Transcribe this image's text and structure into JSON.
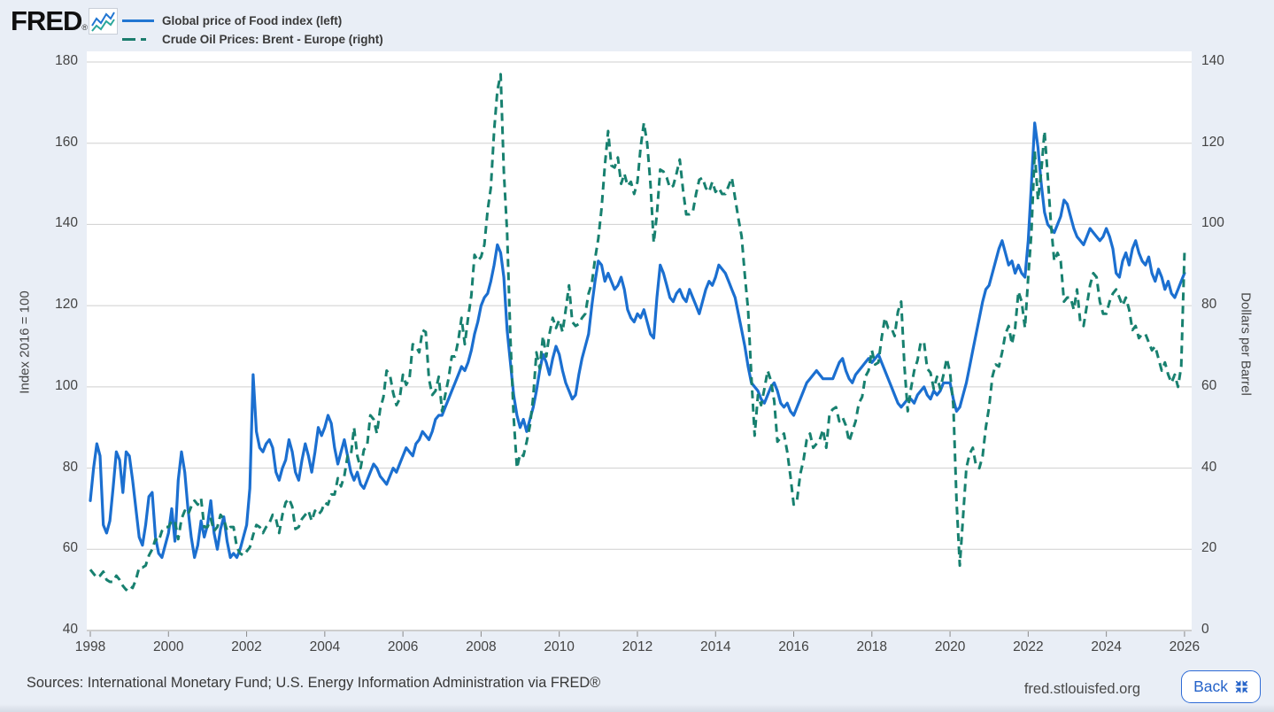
{
  "header": {
    "logo_text": "FRED",
    "registered_mark": "®",
    "sparkline_icon": "fred-sparkline-icon"
  },
  "legend": [
    {
      "label": "Global price of Food index (left)",
      "color": "#2176d2",
      "style": "solid"
    },
    {
      "label": "Crude Oil Prices: Brent - Europe (right)",
      "color": "#1b7c6d",
      "style": "dashed"
    }
  ],
  "footer": {
    "sources": "Sources: International Monetary Fund; U.S. Energy Information Administration via FRED®",
    "site": "fred.stlouisfed.org",
    "back_label": "Back"
  },
  "chart_data": {
    "type": "line",
    "title": "",
    "x_start_year": 1998,
    "x_interval": "monthly",
    "x_ticks": [
      1998,
      2000,
      2002,
      2004,
      2006,
      2008,
      2010,
      2012,
      2014,
      2016,
      2018,
      2020,
      2022,
      2024,
      2026
    ],
    "grid": true,
    "legend_position": "top-left",
    "left_axis": {
      "title": "Index 2016 = 100",
      "min": 40,
      "max": 180,
      "ticks": [
        180,
        160,
        140,
        120,
        100,
        80,
        60,
        40
      ]
    },
    "right_axis": {
      "title": "Dollars per Barrel",
      "min": 0,
      "max": 140,
      "ticks": [
        140,
        120,
        100,
        80,
        60,
        40,
        20,
        0
      ]
    },
    "series": [
      {
        "name": "Global price of Food index (left)",
        "axis": "left",
        "color": "#1b6fd0",
        "style": "solid",
        "values": [
          72,
          80,
          86,
          83,
          66,
          64,
          67,
          75,
          84,
          82,
          74,
          84,
          83,
          77,
          70,
          63,
          61,
          66,
          73,
          74,
          63,
          59,
          58,
          61,
          64,
          70,
          62,
          77,
          84,
          79,
          70,
          63,
          58,
          61,
          67,
          63,
          66,
          72,
          64,
          60,
          65,
          68,
          62,
          58,
          59,
          58,
          60,
          63,
          66,
          75,
          103,
          89,
          85,
          84,
          86,
          87,
          85,
          79,
          77,
          80,
          82,
          87,
          84,
          79,
          77,
          82,
          86,
          83,
          79,
          84,
          90,
          88,
          90,
          93,
          91,
          85,
          81,
          84,
          87,
          83,
          79,
          77,
          79,
          76,
          75,
          77,
          79,
          81,
          80,
          78,
          77,
          76,
          78,
          80,
          79,
          81,
          83,
          85,
          84,
          83,
          86,
          87,
          89,
          88,
          87,
          89,
          92,
          93,
          93,
          95,
          97,
          99,
          101,
          103,
          105,
          104,
          106,
          109,
          113,
          116,
          120,
          122,
          123,
          126,
          130,
          135,
          133,
          127,
          114,
          106,
          98,
          93,
          90,
          92,
          89,
          92,
          95,
          99,
          104,
          108,
          106,
          103,
          107,
          110,
          108,
          104,
          101,
          99,
          97,
          98,
          103,
          107,
          110,
          113,
          120,
          126,
          131,
          130,
          126,
          128,
          126,
          124,
          125,
          127,
          124,
          119,
          117,
          116,
          118,
          117,
          119,
          116,
          113,
          112,
          122,
          130,
          128,
          125,
          122,
          121,
          123,
          124,
          122,
          121,
          124,
          122,
          120,
          118,
          121,
          124,
          126,
          125,
          127,
          130,
          129,
          128,
          126,
          124,
          122,
          118,
          114,
          110,
          105,
          101,
          100,
          99,
          97,
          96,
          98,
          100,
          101,
          99,
          96,
          95,
          96,
          94,
          93,
          95,
          97,
          99,
          101,
          102,
          103,
          104,
          103,
          102,
          102,
          102,
          102,
          104,
          106,
          107,
          104,
          102,
          101,
          103,
          104,
          105,
          106,
          107,
          106,
          107,
          108,
          106,
          104,
          102,
          100,
          98,
          96,
          95,
          96,
          97,
          97,
          96,
          98,
          99,
          100,
          98,
          97,
          99,
          98,
          99,
          101,
          101,
          101,
          97,
          94,
          95,
          98,
          101,
          105,
          109,
          113,
          117,
          121,
          124,
          125,
          128,
          131,
          134,
          136,
          133,
          130,
          131,
          128,
          130,
          128,
          127,
          136,
          150,
          165,
          159,
          150,
          143,
          140,
          139,
          138,
          140,
          142,
          146,
          145,
          142,
          139,
          137,
          136,
          135,
          137,
          139,
          138,
          137,
          136,
          137,
          139,
          137,
          134,
          128,
          127,
          131,
          133,
          130,
          134,
          136,
          133,
          131,
          130,
          132,
          128,
          126,
          129,
          127,
          124,
          126,
          123,
          122,
          124,
          126,
          128
        ]
      },
      {
        "name": "Crude Oil Prices: Brent - Europe (right)",
        "axis": "right",
        "color": "#17806f",
        "style": "dashed",
        "values": [
          15,
          14,
          13,
          13.5,
          14.5,
          12.5,
          12,
          12,
          13.5,
          12.5,
          11,
          10,
          11,
          10.5,
          12.5,
          15.5,
          15.5,
          16,
          18.5,
          20,
          22.5,
          22,
          24.5,
          25.5,
          25.5,
          27,
          27,
          22.5,
          27.5,
          29.5,
          28.5,
          30.5,
          32,
          31,
          32.5,
          25.5,
          25.5,
          27.5,
          24.5,
          25.5,
          28.5,
          27.5,
          24.5,
          25.5,
          25.5,
          20.5,
          19,
          18.5,
          19.5,
          20.5,
          23.5,
          26,
          25.5,
          24,
          25.5,
          26.5,
          28.5,
          27.5,
          24,
          28.5,
          31.5,
          32.5,
          30.5,
          25,
          25.5,
          27.5,
          28.5,
          29.5,
          27,
          29.5,
          28.5,
          29.5,
          31.5,
          31,
          33.5,
          33.5,
          37.5,
          35.5,
          38,
          43,
          43,
          50,
          43,
          40,
          44.5,
          45.5,
          53,
          52,
          48.5,
          54.5,
          57.5,
          64,
          63,
          58.5,
          55.5,
          57,
          63,
          60.5,
          62,
          70.5,
          70,
          68.5,
          74,
          73.5,
          62,
          58,
          59,
          62.5,
          54,
          58,
          62,
          67.5,
          67.5,
          71.5,
          77,
          70.5,
          77,
          82.5,
          92.5,
          91,
          92,
          95,
          103.5,
          109,
          123,
          133,
          137,
          113,
          98,
          72,
          52.5,
          40,
          43.5,
          43,
          46.5,
          50.5,
          57.5,
          68.5,
          64.5,
          72.5,
          67.5,
          73,
          77,
          74.5,
          76.5,
          73.5,
          79,
          85,
          76,
          75,
          75.5,
          77,
          78,
          83,
          85.5,
          91.5,
          96.5,
          104,
          114.5,
          123,
          114.5,
          114,
          116.5,
          110,
          112.5,
          109.5,
          110.5,
          107.5,
          110.5,
          119,
          125,
          120,
          110,
          95.5,
          102.5,
          113.5,
          113,
          111.5,
          109,
          109.5,
          112.5,
          116,
          108.5,
          102.5,
          102.5,
          103,
          107.5,
          111,
          111.5,
          109,
          108,
          110.5,
          108,
          109,
          107.5,
          107.5,
          109.5,
          111.5,
          106.5,
          101.5,
          97,
          87.5,
          79,
          62.5,
          48,
          58,
          55.5,
          59.5,
          64,
          61.5,
          56.5,
          46.5,
          47.5,
          48.5,
          44,
          38,
          31,
          32,
          38.5,
          42,
          47,
          48.5,
          45,
          46,
          47,
          49.5,
          45,
          53.5,
          54.5,
          55,
          51.5,
          52.5,
          50.5,
          46.5,
          49,
          51.5,
          56,
          57.5,
          62.5,
          64,
          69,
          65.5,
          66,
          72,
          77,
          74.5,
          74.5,
          72.5,
          78.5,
          81,
          65,
          54,
          59.5,
          64,
          66.5,
          71,
          71,
          64.5,
          63.5,
          59.5,
          62.5,
          59.5,
          63,
          67,
          63.5,
          55.5,
          32,
          16,
          28,
          40,
          43.5,
          45,
          40.5,
          40,
          43,
          50,
          55,
          62.5,
          65.5,
          65,
          68.5,
          73,
          75,
          70.5,
          74.5,
          83.5,
          81,
          74.5,
          87,
          98,
          118,
          106,
          113,
          123,
          112,
          100,
          91,
          93,
          91,
          81,
          82,
          82,
          79,
          84,
          76,
          75,
          80,
          85,
          88,
          87,
          81,
          78,
          78,
          81,
          83,
          84,
          82,
          80,
          82,
          79,
          74,
          75,
          72,
          73,
          73,
          71,
          69,
          70,
          67,
          64,
          66,
          63,
          61,
          63,
          60,
          65,
          93
        ]
      }
    ]
  }
}
